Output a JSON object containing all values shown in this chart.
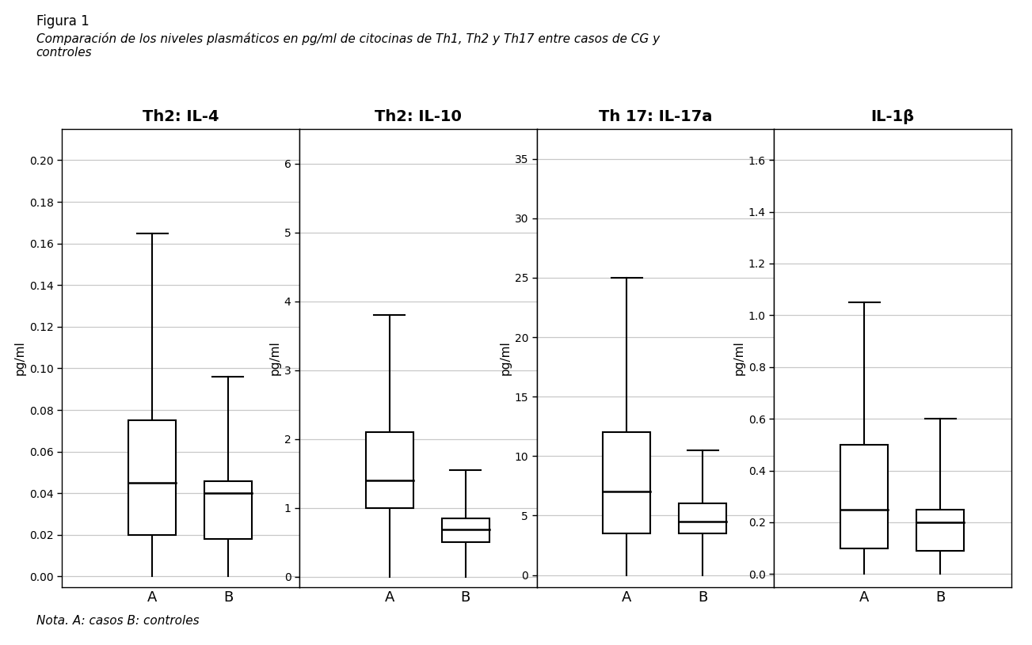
{
  "figure_title": "Figura 1",
  "figure_subtitle": "Comparación de los niveles plasmáticos en pg/ml de citocinas de Th1, Th2 y Th17 entre casos de CG y\ncontroles",
  "nota": "Nota. A: casos B: controles",
  "panels": [
    {
      "title": "Th2: IL-4",
      "ylabel": "pg/ml",
      "yticks": [
        0,
        0.02,
        0.04,
        0.06,
        0.08,
        0.1,
        0.12,
        0.14,
        0.16,
        0.18,
        0.2
      ],
      "ylim": [
        -0.005,
        0.215
      ],
      "boxes": [
        {
          "label": "A",
          "whisker_low": 0.0,
          "q1": 0.02,
          "median": 0.045,
          "q3": 0.075,
          "whisker_high": 0.165
        },
        {
          "label": "B",
          "whisker_low": 0.0,
          "q1": 0.018,
          "median": 0.04,
          "q3": 0.046,
          "whisker_high": 0.096
        }
      ]
    },
    {
      "title": "Th2: IL-10",
      "ylabel": "pg/ml",
      "yticks": [
        0,
        1,
        2,
        3,
        4,
        5,
        6
      ],
      "ylim": [
        -0.15,
        6.5
      ],
      "boxes": [
        {
          "label": "A",
          "whisker_low": 0.0,
          "q1": 1.0,
          "median": 1.4,
          "q3": 2.1,
          "whisker_high": 3.8
        },
        {
          "label": "B",
          "whisker_low": 0.0,
          "q1": 0.5,
          "median": 0.68,
          "q3": 0.85,
          "whisker_high": 1.55
        }
      ]
    },
    {
      "title": "Th 17: IL-17a",
      "ylabel": "pg/ml",
      "yticks": [
        0,
        5,
        10,
        15,
        20,
        25,
        30,
        35
      ],
      "ylim": [
        -1.0,
        37.5
      ],
      "boxes": [
        {
          "label": "A",
          "whisker_low": 0.0,
          "q1": 3.5,
          "median": 7.0,
          "q3": 12.0,
          "whisker_high": 25.0
        },
        {
          "label": "B",
          "whisker_low": 0.0,
          "q1": 3.5,
          "median": 4.5,
          "q3": 6.0,
          "whisker_high": 10.5
        }
      ]
    },
    {
      "title": "IL-1β",
      "ylabel": "pg/ml",
      "yticks": [
        0,
        0.2,
        0.4,
        0.6,
        0.8,
        1.0,
        1.2,
        1.4,
        1.6
      ],
      "ylim": [
        -0.05,
        1.72
      ],
      "boxes": [
        {
          "label": "A",
          "whisker_low": 0.0,
          "q1": 0.1,
          "median": 0.25,
          "q3": 0.5,
          "whisker_high": 1.05
        },
        {
          "label": "B",
          "whisker_low": 0.0,
          "q1": 0.09,
          "median": 0.2,
          "q3": 0.25,
          "whisker_high": 0.6
        }
      ]
    }
  ],
  "box_facecolor": "white",
  "box_edgecolor": "black",
  "whisker_color": "black",
  "median_color": "black",
  "grid_color": "#c8c8c8",
  "background_color": "white",
  "title_fontsize": 14,
  "ylabel_fontsize": 11,
  "tick_fontsize": 10,
  "xtick_fontsize": 13,
  "fig_title_fontsize": 12,
  "fig_subtitle_fontsize": 11,
  "nota_fontsize": 11
}
